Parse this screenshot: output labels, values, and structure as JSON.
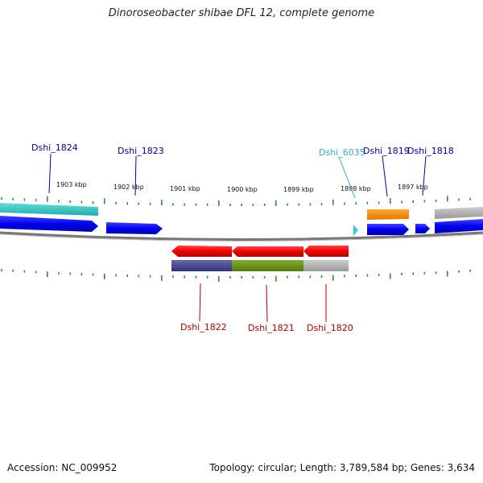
{
  "title": "Dinoroseobacter shibae DFL 12, complete genome",
  "footer": {
    "accession": "Accession: NC_009952",
    "stats": "Topology: circular; Length: 3,789,584 bp; Genes: 3,634"
  },
  "colors": {
    "forward_gene": "#0000ee",
    "reverse_gene": "#ee0000",
    "cyan_track": "#33cccc",
    "orange_track": "#ff8800",
    "gray_track": "#aaaaaa",
    "purple_track": "#444488",
    "green_track": "#669922",
    "backbone": "#888888",
    "tick": "#228822",
    "forward_label": "#000099",
    "reverse_label": "#aa0000",
    "rna_label": "#33aacc"
  },
  "ticks": [
    {
      "label": "1903 kbp"
    },
    {
      "label": "1902 kbp"
    },
    {
      "label": "1901 kbp"
    },
    {
      "label": "1900 kbp"
    },
    {
      "label": "1899 kbp"
    },
    {
      "label": "1898 kbp"
    },
    {
      "label": "1897 kbp"
    }
  ],
  "genes": {
    "top": [
      {
        "name": "Dshi_1824",
        "kind": "cds"
      },
      {
        "name": "Dshi_1823",
        "kind": "cds"
      },
      {
        "name": "Dshi_6035",
        "kind": "rna"
      },
      {
        "name": "Dshi_1819",
        "kind": "cds"
      },
      {
        "name": "Dshi_1818",
        "kind": "cds"
      }
    ],
    "bottom": [
      {
        "name": "Dshi_1822",
        "kind": "cds"
      },
      {
        "name": "Dshi_1821",
        "kind": "cds"
      },
      {
        "name": "Dshi_1820",
        "kind": "cds"
      }
    ]
  }
}
